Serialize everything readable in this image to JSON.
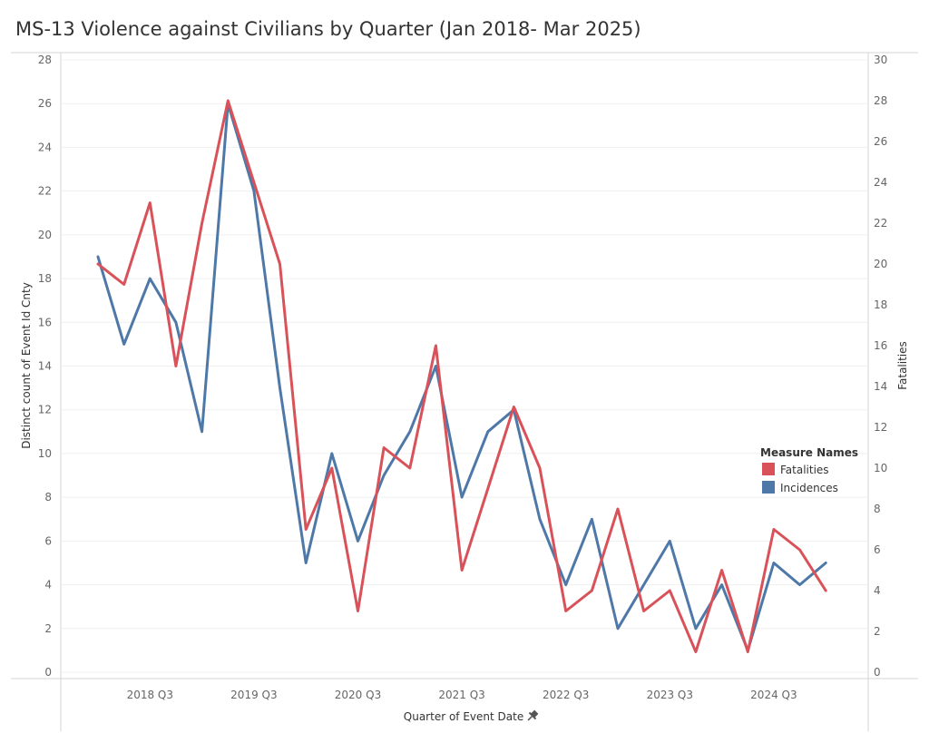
{
  "title": "MS-13 Violence against Civilians by Quarter (Jan 2018- Mar 2025)",
  "colors": {
    "fatalities": "#d95159",
    "incidences": "#4e78a7"
  },
  "chart_data": {
    "type": "line",
    "title": "MS-13 Violence against Civilians by Quarter (Jan 2018- Mar 2025)",
    "xlabel": "Quarter of Event Date",
    "ylabel_left": "Distinct count of Event Id Cnty",
    "ylabel_right": "Fatalities",
    "x": [
      "2018 Q1",
      "2018 Q2",
      "2018 Q3",
      "2018 Q4",
      "2019 Q1",
      "2019 Q2",
      "2019 Q3",
      "2019 Q4",
      "2020 Q1",
      "2020 Q2",
      "2020 Q3",
      "2020 Q4",
      "2021 Q1",
      "2021 Q2",
      "2021 Q3",
      "2021 Q4",
      "2022 Q1",
      "2022 Q2",
      "2022 Q3",
      "2022 Q4",
      "2023 Q1",
      "2023 Q2",
      "2023 Q3",
      "2023 Q4",
      "2024 Q1",
      "2024 Q2",
      "2024 Q3",
      "2024 Q4",
      "2025 Q1"
    ],
    "x_tick_labels": [
      "2018 Q3",
      "2019 Q3",
      "2020 Q3",
      "2021 Q3",
      "2022 Q3",
      "2023 Q3",
      "2024 Q3"
    ],
    "ylim_left": [
      0,
      28
    ],
    "yticks_left": [
      0,
      2,
      4,
      6,
      8,
      10,
      12,
      14,
      16,
      18,
      20,
      22,
      24,
      26,
      28
    ],
    "ylim_right": [
      0,
      30
    ],
    "yticks_right": [
      0,
      2,
      4,
      6,
      8,
      10,
      12,
      14,
      16,
      18,
      20,
      22,
      24,
      26,
      28,
      30
    ],
    "series": [
      {
        "name": "Fatalities",
        "axis": "right",
        "values": [
          20,
          19,
          23,
          15,
          22,
          28,
          24,
          20,
          7,
          10,
          3,
          11,
          10,
          16,
          5,
          9,
          13,
          10,
          3,
          4,
          8,
          3,
          4,
          1,
          5,
          1,
          7,
          6,
          4
        ]
      },
      {
        "name": "Incidences",
        "axis": "left",
        "values": [
          19,
          15,
          18,
          16,
          11,
          26,
          22,
          13,
          5,
          10,
          6,
          9,
          11,
          14,
          8,
          11,
          12,
          7,
          4,
          7,
          2,
          4,
          6,
          2,
          4,
          1,
          5,
          4,
          5
        ]
      }
    ],
    "legend": {
      "title": "Measure Names",
      "position": "right",
      "items": [
        "Fatalities",
        "Incidences"
      ]
    },
    "grid": true
  }
}
